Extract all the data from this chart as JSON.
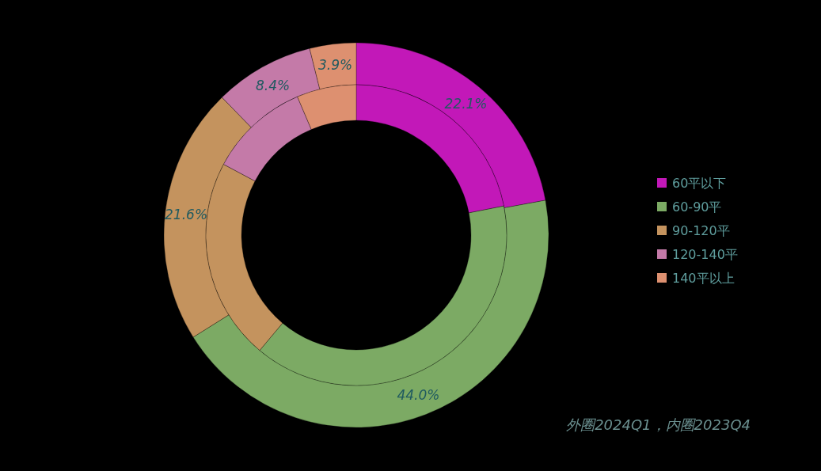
{
  "chart_data": {
    "type": "donut",
    "categories": [
      "60平以下",
      "60-90平",
      "90-120平",
      "120-140平",
      "140平以上"
    ],
    "colors": [
      "#c218b8",
      "#7caa64",
      "#c4935e",
      "#c47aa8",
      "#dd9070"
    ],
    "series": [
      {
        "values": [
          22.1,
          44.0,
          21.6,
          8.4,
          3.9
        ],
        "value_labels": [
          "22.1%",
          "44.0%",
          "21.6%",
          "8.4%",
          "3.9%"
        ]
      },
      {
        "values": [
          21.9,
          39.2,
          21.7,
          10.8,
          6.4
        ]
      }
    ],
    "legend": "right",
    "annotations": [
      "外圈2024Q1，内圈2023Q4"
    ]
  }
}
